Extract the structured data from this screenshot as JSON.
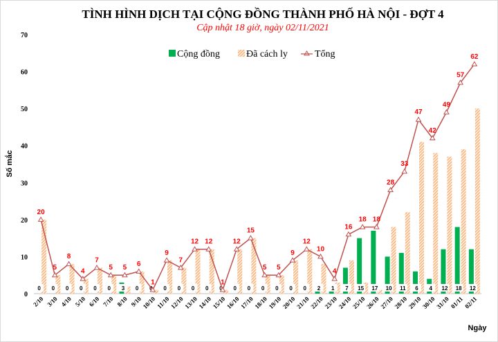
{
  "chart_data": {
    "type": "bar",
    "title": "TÌNH HÌNH DỊCH TẠI CỘNG ĐỒNG THÀNH PHỐ HÀ NỘI - ĐỢT 4",
    "subtitle": "Cập nhật 18 giờ, ngày 02/11/2021",
    "xlabel": "Ngày",
    "ylabel": "Số mắc",
    "ylim": [
      0,
      70
    ],
    "yticks": [
      0,
      10,
      20,
      30,
      40,
      50,
      60,
      70
    ],
    "grid": false,
    "legend_position": "top-right",
    "categories": [
      "2/10",
      "3/10",
      "4/10",
      "5/10",
      "6/10",
      "7/10",
      "8/10",
      "9/10",
      "10/10",
      "11/10",
      "12/10",
      "13/10",
      "14/10",
      "15/10",
      "16/10",
      "17/10",
      "18/10",
      "19/10",
      "20/10",
      "21/10",
      "22/10",
      "23/10",
      "24/10",
      "25/10",
      "26/10",
      "27/10",
      "28/10",
      "29/10",
      "30/10",
      "31/10",
      "01/11",
      "02/11"
    ],
    "series": [
      {
        "name": "Cộng đồng",
        "kind": "bar",
        "color": "#00b050",
        "values": [
          0,
          0,
          0,
          0,
          0,
          0,
          3,
          0,
          0,
          0,
          0,
          0,
          0,
          0,
          0,
          0,
          0,
          0,
          0,
          0,
          2,
          1,
          7,
          15,
          17,
          10,
          11,
          6,
          4,
          12,
          18,
          12
        ]
      },
      {
        "name": "Đã cách ly",
        "kind": "bar-hatched",
        "color": "#f4a460",
        "values": [
          20,
          5,
          8,
          4,
          7,
          5,
          2,
          6,
          1,
          9,
          7,
          12,
          12,
          1,
          12,
          15,
          5,
          5,
          9,
          12,
          8,
          3,
          9,
          3,
          1,
          18,
          22,
          41,
          38,
          37,
          39,
          50
        ]
      },
      {
        "name": "Tổng",
        "kind": "line",
        "color": "#c0504d",
        "label_color": "#ff0000",
        "values": [
          20,
          5,
          8,
          4,
          7,
          5,
          5,
          6,
          1,
          9,
          7,
          12,
          12,
          1,
          12,
          15,
          5,
          5,
          9,
          12,
          10,
          4,
          16,
          18,
          18,
          28,
          33,
          47,
          42,
          49,
          57,
          62
        ]
      }
    ]
  }
}
